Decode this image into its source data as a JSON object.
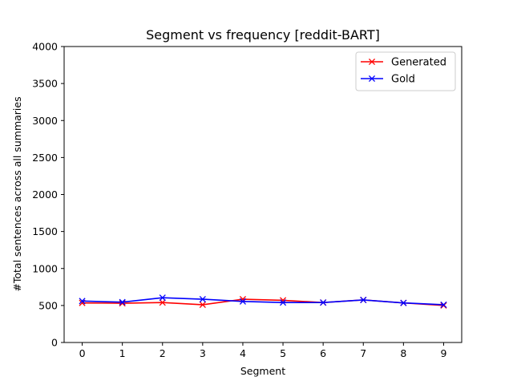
{
  "chart_data": {
    "type": "line",
    "title": "Segment vs frequency [reddit-BART]",
    "xlabel": "Segment",
    "ylabel": "#Total sentences across all summaries",
    "x": [
      0,
      1,
      2,
      3,
      4,
      5,
      6,
      7,
      8,
      9
    ],
    "xticks": [
      "0",
      "1",
      "2",
      "3",
      "4",
      "5",
      "6",
      "7",
      "8",
      "9"
    ],
    "yticks": [
      "0",
      "500",
      "1000",
      "1500",
      "2000",
      "2500",
      "3000",
      "3500",
      "4000"
    ],
    "ylim": [
      0,
      4000
    ],
    "xlim": [
      -0.45,
      9.45
    ],
    "grid": false,
    "legend_position": "top-right",
    "series": [
      {
        "name": "Generated",
        "color": "#ff0000",
        "marker": "x",
        "values": [
          535,
          530,
          540,
          510,
          585,
          570,
          540,
          575,
          535,
          500
        ]
      },
      {
        "name": "Gold",
        "color": "#0000ff",
        "marker": "x",
        "values": [
          560,
          545,
          605,
          585,
          555,
          540,
          540,
          575,
          535,
          510
        ]
      }
    ]
  }
}
